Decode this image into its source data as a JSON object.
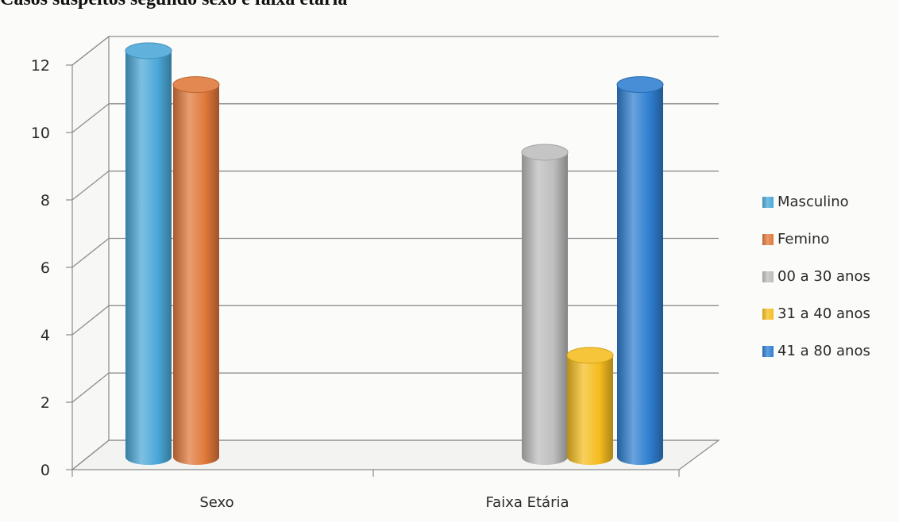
{
  "title": "Casos suspeitos segundo sexo e faixa etária",
  "chart_data": {
    "type": "bar",
    "title": "Casos suspeitos segundo sexo e faixa etária",
    "xlabel": "",
    "ylabel": "",
    "ylim": [
      0,
      12
    ],
    "yticks": [
      "0",
      "2",
      "4",
      "6",
      "8",
      "10",
      "12"
    ],
    "categories": [
      "Sexo",
      "Faixa Etária"
    ],
    "grid": true,
    "legend_position": "right",
    "series": [
      {
        "name": "Masculino",
        "color": "#4aa8d8",
        "values": [
          12,
          null
        ]
      },
      {
        "name": "Femino",
        "color": "#e0783a",
        "values": [
          11,
          null
        ]
      },
      {
        "name": "00 a 30 anos",
        "color": "#bdbdbd",
        "values": [
          null,
          9
        ]
      },
      {
        "name": "31 a 40 anos",
        "color": "#f5bd1f",
        "values": [
          null,
          3
        ]
      },
      {
        "name": "41 a 80 anos",
        "color": "#2f7fd0",
        "values": [
          null,
          11
        ]
      }
    ]
  }
}
